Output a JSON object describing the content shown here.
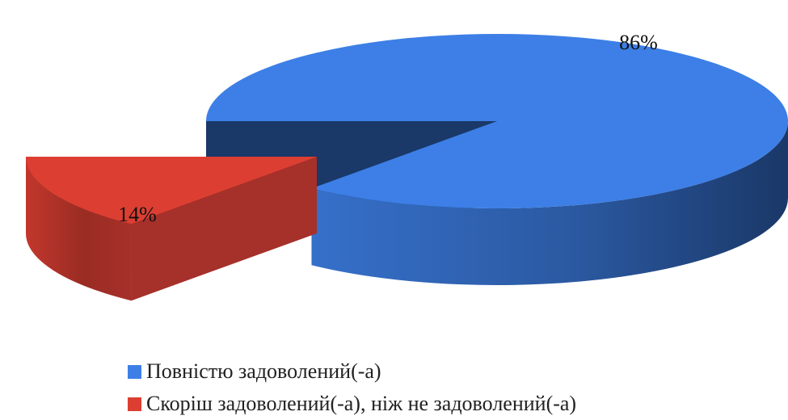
{
  "chart_data": {
    "type": "pie",
    "three_d": true,
    "title": "",
    "categories": [
      "Повністю задоволений(-а)",
      "Скоріш задоволений(-а), ніж не задоволений(-а)"
    ],
    "values": [
      86,
      14
    ],
    "data_labels": [
      "86%",
      "14%"
    ],
    "colors": [
      "#3d7fe6",
      "#dc3f32"
    ],
    "legend_position": "bottom"
  }
}
